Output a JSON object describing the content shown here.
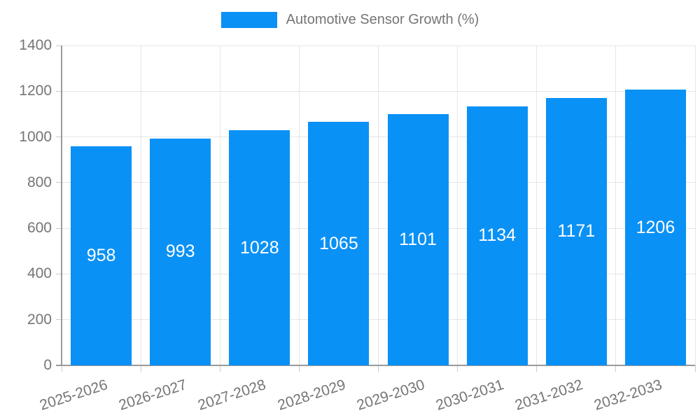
{
  "chart_data": {
    "type": "bar",
    "title": "Automotive Sensor Growth (%)",
    "categories": [
      "2025-2026",
      "2026-2027",
      "2027-2028",
      "2028-2029",
      "2029-2030",
      "2030-2031",
      "2031-2032",
      "2032-2033"
    ],
    "values": [
      958,
      993,
      1028,
      1065,
      1101,
      1134,
      1171,
      1206
    ],
    "xlabel": "",
    "ylabel": "",
    "ylim": [
      0,
      1400
    ],
    "yticks": [
      0,
      200,
      400,
      600,
      800,
      1000,
      1200,
      1400
    ],
    "grid": true,
    "legend_position": "top",
    "value_labels": "inside-center",
    "x_label_rotation_deg": -18,
    "colors": {
      "bar": "#0a91f5",
      "value_label": "#ffffff",
      "grid": "#e6e6e6",
      "tick": "#c9c9c9",
      "axis": "#9b9b9b",
      "text": "#757575"
    }
  }
}
